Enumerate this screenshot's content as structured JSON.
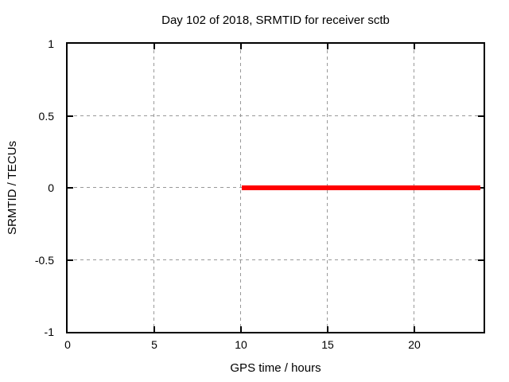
{
  "page": {
    "background": "#ffffff"
  },
  "chart_data": {
    "type": "line",
    "title": "Day 102 of 2018, SRMTID for receiver sctb",
    "xlabel": "GPS time / hours",
    "ylabel": "SRMTID / TECUs",
    "xlim": [
      0,
      24
    ],
    "ylim": [
      -1,
      1
    ],
    "xticks": [
      0,
      5,
      10,
      15,
      20
    ],
    "yticks": [
      -1,
      -0.5,
      0,
      0.5,
      1
    ],
    "grid": true,
    "legend_position": "none",
    "series": [
      {
        "name": "SRMTID",
        "color": "#ff0000",
        "line_width": 6,
        "points": [
          {
            "x": 10.05,
            "y": 0
          },
          {
            "x": 23.8,
            "y": 0
          }
        ]
      }
    ],
    "colors": {
      "background": "#ffffff",
      "border": "#000000",
      "grid": "#999999",
      "text": "#000000",
      "series": "#ff0000"
    }
  }
}
